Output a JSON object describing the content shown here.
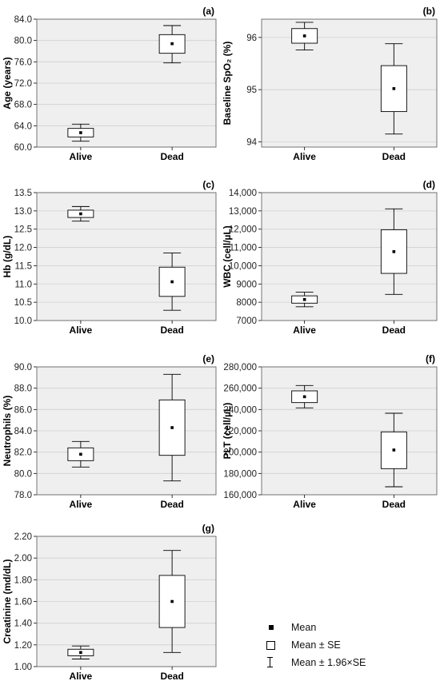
{
  "chart_data": [
    {
      "panel": "(a)",
      "type": "box",
      "ylabel": "Age (years)",
      "categories": [
        "Alive",
        "Dead"
      ],
      "ylim": [
        60,
        84
      ],
      "yticks": [
        "60.0",
        "64.0",
        "68.0",
        "72.0",
        "76.0",
        "80.0",
        "84.0"
      ],
      "series": [
        {
          "category": "Alive",
          "mean": 62.7,
          "se_low": 61.9,
          "se_high": 63.5,
          "ci_low": 61.1,
          "ci_high": 64.3
        },
        {
          "category": "Dead",
          "mean": 79.4,
          "se_low": 77.6,
          "se_high": 81.1,
          "ci_low": 75.8,
          "ci_high": 82.8
        }
      ]
    },
    {
      "panel": "(b)",
      "type": "box",
      "ylabel": "Baseline SpO₂ (%)",
      "categories": [
        "Alive",
        "Dead"
      ],
      "ylim": [
        93.9,
        96.35
      ],
      "yticks": [
        "94",
        "95",
        "96"
      ],
      "series": [
        {
          "category": "Alive",
          "mean": 96.03,
          "se_low": 95.89,
          "se_high": 96.17,
          "ci_low": 95.76,
          "ci_high": 96.29
        },
        {
          "category": "Dead",
          "mean": 95.02,
          "se_low": 94.58,
          "se_high": 95.46,
          "ci_low": 94.15,
          "ci_high": 95.88
        }
      ]
    },
    {
      "panel": "(c)",
      "type": "box",
      "ylabel": "Hb (g/dL)",
      "categories": [
        "Alive",
        "Dead"
      ],
      "ylim": [
        10,
        13.5
      ],
      "yticks": [
        "10.0",
        "10.5",
        "11.0",
        "11.5",
        "12.0",
        "12.5",
        "13.0",
        "13.5"
      ],
      "series": [
        {
          "category": "Alive",
          "mean": 12.92,
          "se_low": 12.82,
          "se_high": 13.02,
          "ci_low": 12.72,
          "ci_high": 13.12
        },
        {
          "category": "Dead",
          "mean": 11.06,
          "se_low": 10.66,
          "se_high": 11.46,
          "ci_low": 10.28,
          "ci_high": 11.85
        }
      ]
    },
    {
      "panel": "(d)",
      "type": "box",
      "ylabel": "WBC (cell/µL)",
      "categories": [
        "Alive",
        "Dead"
      ],
      "ylim": [
        7000,
        14000
      ],
      "yticks": [
        "7000",
        "8000",
        "9000",
        "10,000",
        "11,000",
        "12,000",
        "13,000",
        "14,000"
      ],
      "series": [
        {
          "category": "Alive",
          "mean": 8150,
          "se_low": 7950,
          "se_high": 8350,
          "ci_low": 7750,
          "ci_high": 8550
        },
        {
          "category": "Dead",
          "mean": 10770,
          "se_low": 9580,
          "se_high": 11970,
          "ci_low": 8430,
          "ci_high": 13110
        }
      ]
    },
    {
      "panel": "(e)",
      "type": "box",
      "ylabel": "Neutrophils (%)",
      "categories": [
        "Alive",
        "Dead"
      ],
      "ylim": [
        78,
        90
      ],
      "yticks": [
        "78.0",
        "80.0",
        "82.0",
        "84.0",
        "86.0",
        "88.0",
        "90.0"
      ],
      "series": [
        {
          "category": "Alive",
          "mean": 81.8,
          "se_low": 81.2,
          "se_high": 82.4,
          "ci_low": 80.6,
          "ci_high": 83.0
        },
        {
          "category": "Dead",
          "mean": 84.3,
          "se_low": 81.7,
          "se_high": 86.9,
          "ci_low": 79.3,
          "ci_high": 89.3
        }
      ]
    },
    {
      "panel": "(f)",
      "type": "box",
      "ylabel": "PLT (cell/µL)",
      "categories": [
        "Alive",
        "Dead"
      ],
      "ylim": [
        160000,
        280000
      ],
      "yticks": [
        "160,000",
        "180,000",
        "200,000",
        "220,000",
        "240,000",
        "260,000",
        "280,000"
      ],
      "series": [
        {
          "category": "Alive",
          "mean": 252000,
          "se_low": 246500,
          "se_high": 257500,
          "ci_low": 241500,
          "ci_high": 262500
        },
        {
          "category": "Dead",
          "mean": 202000,
          "se_low": 184500,
          "se_high": 219000,
          "ci_low": 167500,
          "ci_high": 236500
        }
      ]
    },
    {
      "panel": "(g)",
      "type": "box",
      "ylabel": "Creatinine (md/dL)",
      "categories": [
        "Alive",
        "Dead"
      ],
      "ylim": [
        1.0,
        2.2
      ],
      "yticks": [
        "1.00",
        "1.20",
        "1.40",
        "1.60",
        "1.80",
        "2.00",
        "2.20"
      ],
      "series": [
        {
          "category": "Alive",
          "mean": 1.13,
          "se_low": 1.1,
          "se_high": 1.16,
          "ci_low": 1.07,
          "ci_high": 1.19
        },
        {
          "category": "Dead",
          "mean": 1.6,
          "se_low": 1.36,
          "se_high": 1.84,
          "ci_low": 1.13,
          "ci_high": 2.07
        }
      ]
    }
  ],
  "legend": {
    "items": [
      {
        "symbol": "filled-square-icon",
        "label": "Mean"
      },
      {
        "symbol": "open-square-icon",
        "label": "Mean ± SE"
      },
      {
        "symbol": "error-bar-icon",
        "label": "Mean ± 1.96×SE"
      }
    ]
  },
  "colors": {
    "plot_background": "#efefef",
    "grid": "#d0d0d0",
    "box_fill": "#ffffff",
    "ink": "#000000"
  }
}
